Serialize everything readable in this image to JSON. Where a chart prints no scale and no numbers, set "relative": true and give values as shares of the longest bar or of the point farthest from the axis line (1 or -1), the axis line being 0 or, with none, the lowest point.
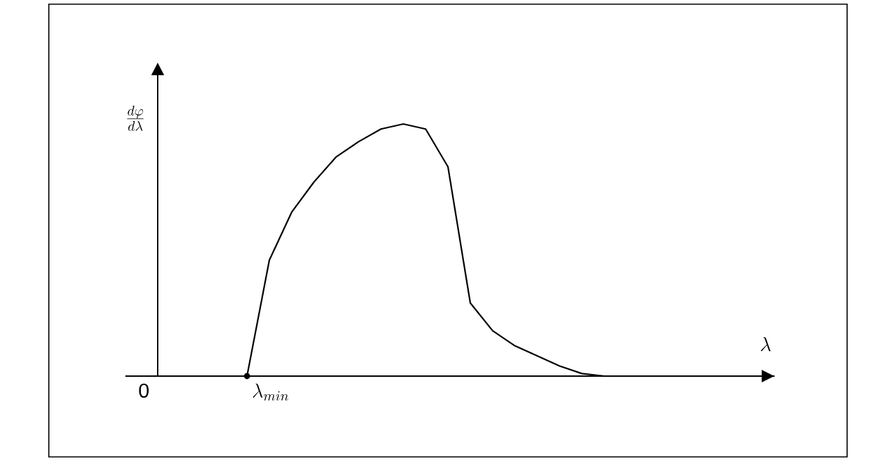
{
  "chart_data": {
    "type": "line",
    "relative": true,
    "annotations": [
      "0",
      "\\lambda_{min}",
      "\\lambda",
      "\\frac{d\\varphi}{d\\lambda}"
    ],
    "categories": [
      null,
      null,
      null,
      null,
      null,
      null,
      null,
      null,
      null,
      null,
      null,
      null,
      null,
      null,
      null,
      null,
      null
    ],
    "series": [
      {
        "color": "#000000",
        "values": [
          0,
          0.46,
          0.65,
          0.77,
          0.87,
          0.93,
          0.98,
          1.0,
          0.98,
          0.83,
          0.29,
          0.18,
          0.12,
          0.08,
          0.04,
          0.01,
          0
        ]
      }
    ]
  }
}
